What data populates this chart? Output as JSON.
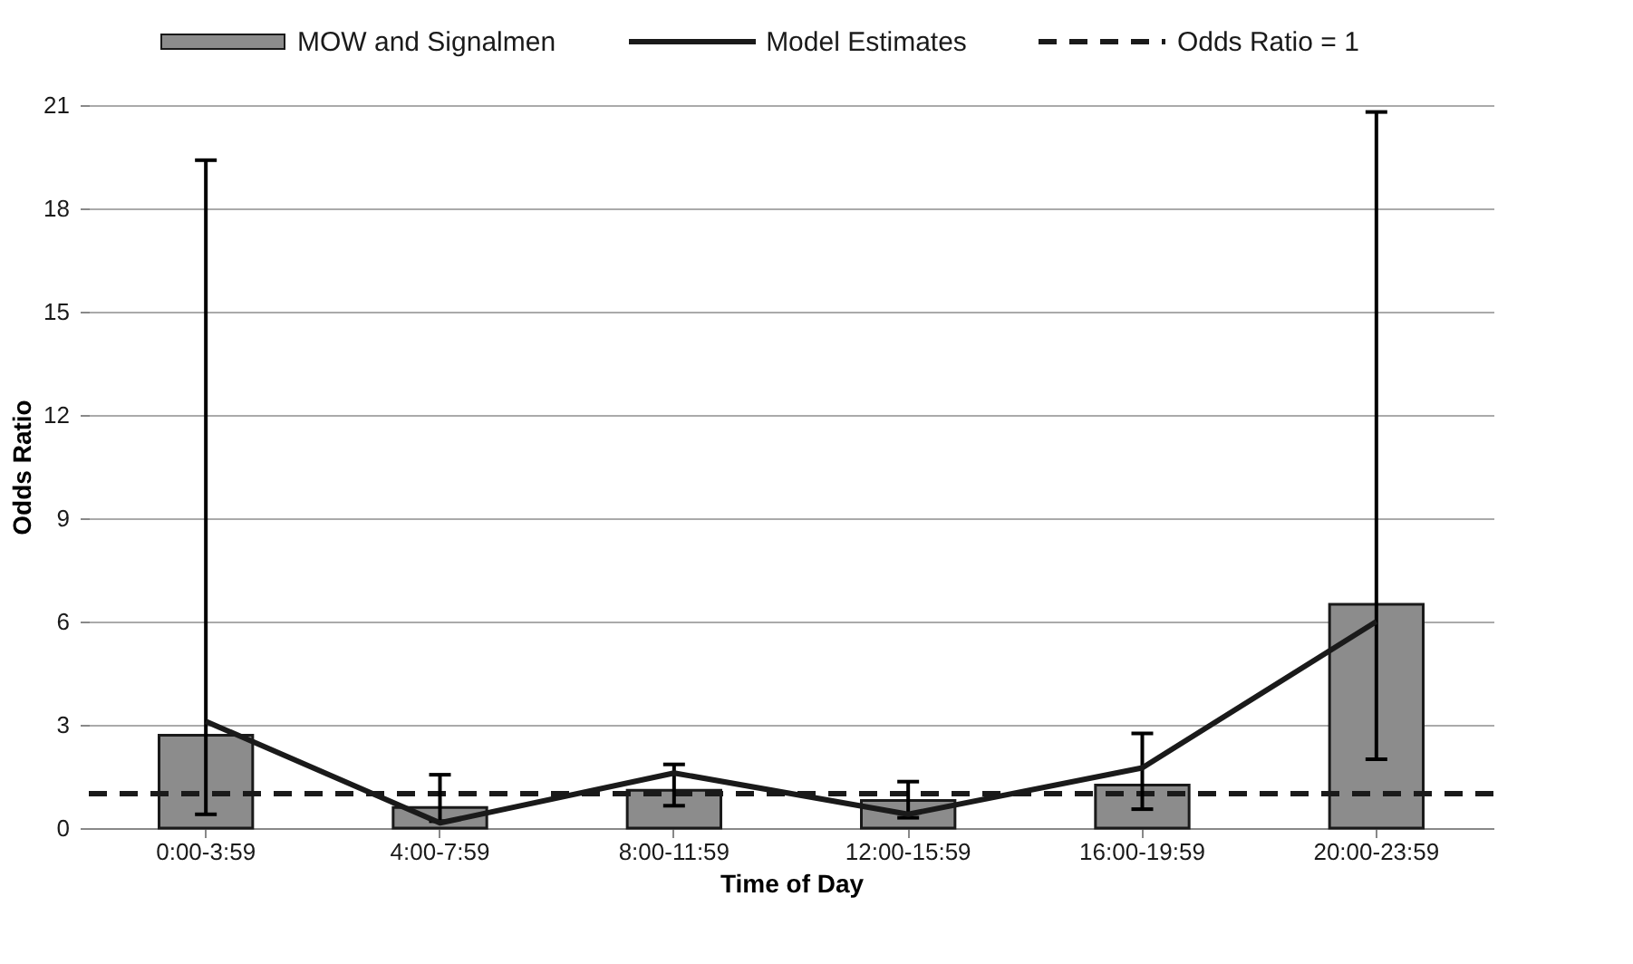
{
  "chart_data": {
    "type": "bar",
    "xlabel": "Time of Day",
    "ylabel": "Odds Ratio",
    "categories": [
      "0:00-3:59",
      "4:00-7:59",
      "8:00-11:59",
      "12:00-15:59",
      "16:00-19:59",
      "20:00-23:59"
    ],
    "series": [
      {
        "name": "MOW and Signalmen",
        "color": "#8c8c8c",
        "values": [
          2.7,
          0.6,
          1.1,
          0.8,
          1.25,
          6.5
        ],
        "errors": [
          [
            0.4,
            19.4
          ],
          [
            0.2,
            1.55
          ],
          [
            0.65,
            1.85
          ],
          [
            0.3,
            1.35
          ],
          [
            0.55,
            2.75
          ],
          [
            2.0,
            20.8
          ]
        ]
      },
      {
        "name": "Model Estimates",
        "type": "line",
        "color": "#1a1a1a",
        "values": [
          3.1,
          0.15,
          1.6,
          0.4,
          1.75,
          6.0
        ]
      }
    ],
    "ref_lines": [
      {
        "axis": "y",
        "value": 1,
        "label": "Odds Ratio = 1",
        "color": "#1a1a1a",
        "line_style": "dashed"
      }
    ],
    "ylim": [
      0,
      21
    ],
    "yticks": [
      0,
      3,
      6,
      9,
      12,
      15,
      18,
      21
    ],
    "grid": "y",
    "legend": "top"
  }
}
